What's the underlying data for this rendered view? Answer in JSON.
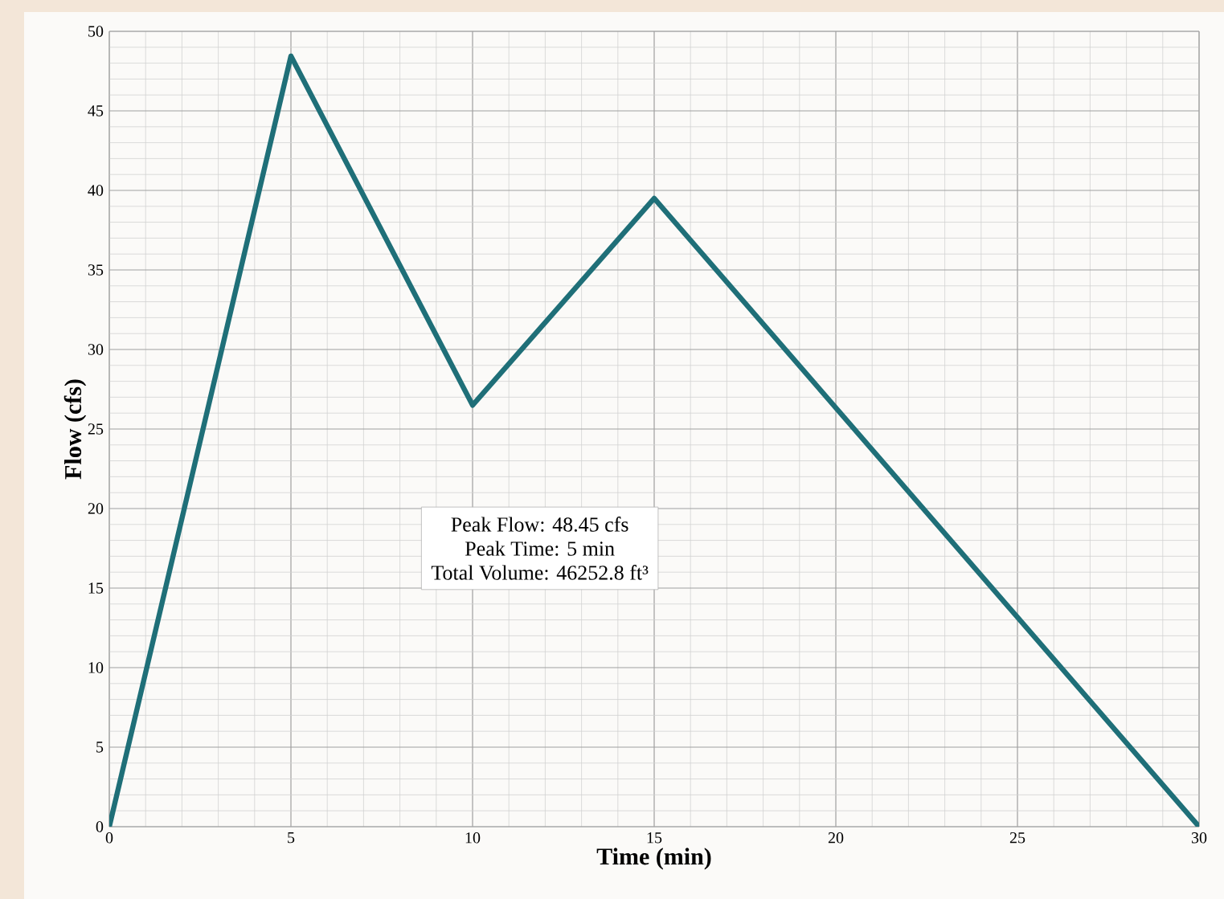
{
  "chart_data": {
    "type": "line",
    "xlabel": "Time (min)",
    "ylabel": "Flow (cfs)",
    "x": [
      0,
      5,
      10,
      15,
      30
    ],
    "series": [
      {
        "color": "#1f6f78",
        "values": [
          0,
          48.45,
          26.5,
          39.5,
          0
        ]
      }
    ],
    "xlim": [
      0,
      30
    ],
    "ylim": [
      0,
      50
    ],
    "xticks": [
      0,
      5,
      10,
      15,
      20,
      25,
      30
    ],
    "yticks": [
      0,
      5,
      10,
      15,
      20,
      25,
      30,
      35,
      40,
      45,
      50
    ],
    "grid": true,
    "annotations": [
      "Peak Flow:  48.45 cfs",
      "Peak Time: 5 min",
      "Total Volume:  46252.8 ft³"
    ]
  }
}
